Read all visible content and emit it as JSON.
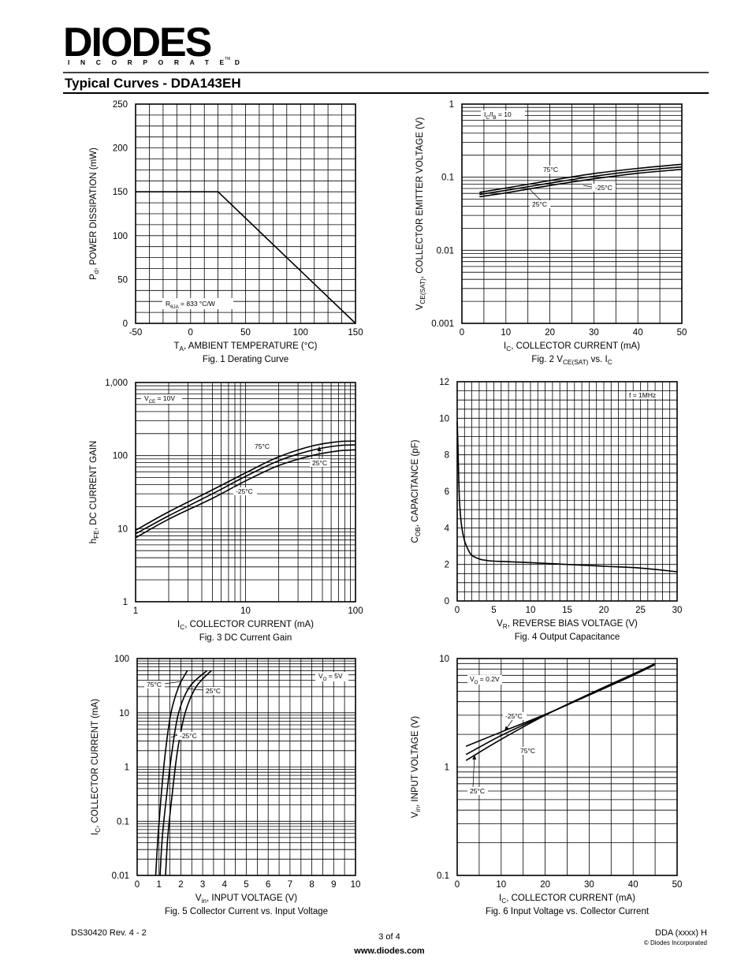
{
  "header": {
    "logo_text": "DIODES",
    "logo_subtext": "INCORPORATED",
    "logo_tm": "TM",
    "section_title": "Typical Curves - DDA143EH"
  },
  "footer": {
    "doc_number": "DS30420 Rev. 4 - 2",
    "page": "3 of 4",
    "website": "www.diodes.com",
    "part_code": "DDA (xxxx) H",
    "copyright": "© Diodes Incorporated"
  },
  "chart_data": [
    {
      "id": "fig1",
      "type": "line",
      "title": "Fig. 1  Derating Curve",
      "xlabel": {
        "main": "T",
        "sub": "A",
        "rest": ", AMBIENT TEMPERATURE (°C)"
      },
      "ylabel": {
        "main": "P",
        "sub": "d",
        "rest": ", POWER DISSIPATION (mW)"
      },
      "xscale": "linear",
      "yscale": "linear",
      "xlim": [
        -50,
        150
      ],
      "ylim": [
        0,
        250
      ],
      "xticks": [
        -50,
        0,
        50,
        100,
        150
      ],
      "xtick_labels": [
        "-50",
        "0",
        "50",
        "100",
        "150"
      ],
      "yticks": [
        0,
        50,
        100,
        150,
        200,
        250
      ],
      "ytick_labels": [
        "0",
        "50",
        "100",
        "150",
        "200",
        "250"
      ],
      "grid": true,
      "series": [
        {
          "name": "Pd",
          "x": [
            -50,
            25,
            150
          ],
          "y": [
            150,
            150,
            0
          ]
        }
      ],
      "annotations": [
        {
          "main": "R",
          "sub": "θJA",
          "rest": " = 833 °C/W"
        }
      ]
    },
    {
      "id": "fig2",
      "type": "line",
      "title": {
        "main": "Fig. 2  V",
        "sub": "CE(SAT)",
        "rest": " vs. I",
        "sub2": "C"
      },
      "xlabel": {
        "main": "I",
        "sub": "C",
        "rest": ", COLLECTOR CURRENT (mA)"
      },
      "ylabel": {
        "main": "V",
        "sub": "CE(SAT)",
        "rest": ", COLLECTOR EMITTER VOLTAGE (V)"
      },
      "xscale": "linear",
      "yscale": "log",
      "xlim": [
        0,
        50
      ],
      "ylim": [
        0.001,
        1
      ],
      "xticks": [
        0,
        10,
        20,
        30,
        40,
        50
      ],
      "xtick_labels": [
        "0",
        "10",
        "20",
        "30",
        "40",
        "50"
      ],
      "yticks": [
        0.001,
        0.01,
        0.1,
        1
      ],
      "ytick_labels": [
        "0.001",
        "0.01",
        "0.1",
        "1"
      ],
      "grid": true,
      "series": [
        {
          "name": "75°C",
          "x": [
            4,
            10,
            20,
            30,
            40,
            50
          ],
          "y": [
            0.062,
            0.071,
            0.09,
            0.112,
            0.132,
            0.15
          ]
        },
        {
          "name": "-25°C",
          "x": [
            4,
            10,
            20,
            30,
            40,
            50
          ],
          "y": [
            0.058,
            0.066,
            0.083,
            0.103,
            0.122,
            0.138
          ]
        },
        {
          "name": "25°C",
          "x": [
            4,
            10,
            20,
            30,
            40,
            50
          ],
          "y": [
            0.054,
            0.061,
            0.077,
            0.095,
            0.113,
            0.128
          ]
        }
      ],
      "annotations": [
        {
          "main": "I",
          "sub": "C",
          "rest": "/I",
          "sub2": "B",
          "rest2": " = 10"
        },
        {
          "main": "75°C"
        },
        {
          "main": "-25°C"
        },
        {
          "main": "25°C"
        }
      ]
    },
    {
      "id": "fig3",
      "type": "line",
      "title": "Fig. 3  DC Current Gain",
      "xlabel": {
        "main": "I",
        "sub": "C",
        "rest": ", COLLECTOR CURRENT (mA)"
      },
      "ylabel": {
        "main": "h",
        "sub": "FE",
        "rest": ", DC CURRENT GAIN"
      },
      "xscale": "log",
      "yscale": "log",
      "xlim": [
        1,
        100
      ],
      "ylim": [
        1,
        1000
      ],
      "xticks": [
        1,
        10,
        100
      ],
      "xtick_labels": [
        "1",
        "10",
        "100"
      ],
      "yticks": [
        1,
        10,
        100,
        1000
      ],
      "ytick_labels": [
        "1",
        "10",
        "100",
        "1,000"
      ],
      "grid": true,
      "series": [
        {
          "name": "75°C",
          "x": [
            1,
            2,
            5,
            10,
            20,
            40,
            70,
            100
          ],
          "y": [
            9.5,
            17,
            34,
            58,
            96,
            135,
            155,
            158
          ]
        },
        {
          "name": "25°C",
          "x": [
            1,
            2,
            5,
            10,
            20,
            40,
            70,
            100
          ],
          "y": [
            8.5,
            15,
            30,
            52,
            85,
            118,
            137,
            140
          ]
        },
        {
          "name": "-25°C",
          "x": [
            1,
            2,
            5,
            10,
            20,
            40,
            70,
            100
          ],
          "y": [
            7.5,
            13.5,
            26,
            45,
            73,
            100,
            116,
            120
          ]
        }
      ],
      "annotations": [
        {
          "main": "V",
          "sub": "CE",
          "rest": " = 10V"
        },
        {
          "main": "75°C"
        },
        {
          "main": "25°C"
        },
        {
          "main": "-25°C"
        }
      ]
    },
    {
      "id": "fig4",
      "type": "line",
      "title": "Fig. 4  Output Capacitance",
      "xlabel": {
        "main": "V",
        "sub": "R",
        "rest": ", REVERSE BIAS VOLTAGE (V)"
      },
      "ylabel": {
        "main": "C",
        "sub": "OB",
        "rest": ", CAPACITANCE (pF)"
      },
      "xscale": "linear",
      "yscale": "linear",
      "xlim": [
        0,
        30
      ],
      "ylim": [
        0,
        12
      ],
      "xticks": [
        0,
        5,
        10,
        15,
        20,
        25,
        30
      ],
      "xtick_labels": [
        "0",
        "5",
        "10",
        "15",
        "20",
        "25",
        "30"
      ],
      "yticks": [
        0,
        2,
        4,
        6,
        8,
        10,
        12
      ],
      "ytick_labels": [
        "0",
        "2",
        "4",
        "6",
        "8",
        "10",
        "12"
      ],
      "grid": true,
      "series": [
        {
          "name": "Cob",
          "x": [
            0,
            0.1,
            0.3,
            0.6,
            1,
            1.5,
            2,
            3,
            4,
            5,
            10,
            15,
            20,
            25,
            30
          ],
          "y": [
            9.8,
            8.6,
            5.6,
            4.1,
            3.3,
            2.8,
            2.5,
            2.3,
            2.22,
            2.18,
            2.1,
            2.0,
            1.9,
            1.8,
            1.6
          ]
        }
      ],
      "annotations": [
        {
          "main": "f = 1MHz"
        }
      ]
    },
    {
      "id": "fig5",
      "type": "line",
      "title": "Fig. 5  Collector Current vs. Input Voltage",
      "xlabel": {
        "main": "V",
        "sub": "in",
        "rest": ", INPUT VOLTAGE (V)"
      },
      "ylabel": {
        "main": "I",
        "sub": "C",
        "rest": ", COLLECTOR CURRENT (mA)"
      },
      "xscale": "linear",
      "yscale": "log",
      "xlim": [
        0,
        10
      ],
      "ylim": [
        0.01,
        100
      ],
      "xticks": [
        0,
        1,
        2,
        3,
        4,
        5,
        6,
        7,
        8,
        9,
        10
      ],
      "xtick_labels": [
        "0",
        "1",
        "2",
        "3",
        "4",
        "5",
        "6",
        "7",
        "8",
        "9",
        "10"
      ],
      "yticks": [
        0.01,
        0.1,
        1,
        10,
        100
      ],
      "ytick_labels": [
        "0.01",
        "0.1",
        "1",
        "10",
        "100"
      ],
      "grid": true,
      "series": [
        {
          "name": "75°C",
          "x": [
            0.85,
            0.95,
            1.1,
            1.3,
            1.55,
            1.9,
            2.3
          ],
          "y": [
            0.01,
            0.05,
            0.3,
            2,
            10,
            30,
            60
          ]
        },
        {
          "name": "25°C",
          "x": [
            1.05,
            1.15,
            1.35,
            1.6,
            1.9,
            2.4,
            3.2
          ],
          "y": [
            0.01,
            0.05,
            0.3,
            2,
            10,
            30,
            60
          ]
        },
        {
          "name": "-25°C",
          "x": [
            1.3,
            1.4,
            1.6,
            1.85,
            2.2,
            2.7,
            3.4
          ],
          "y": [
            0.01,
            0.05,
            0.3,
            2,
            10,
            30,
            60
          ]
        }
      ],
      "annotations": [
        {
          "main": "V",
          "sub": "O",
          "rest": " = 5V"
        },
        {
          "main": "75°C"
        },
        {
          "main": "25°C"
        },
        {
          "main": "-25°C"
        }
      ]
    },
    {
      "id": "fig6",
      "type": "line",
      "title": "Fig. 6  Input Voltage vs. Collector Current",
      "xlabel": {
        "main": "I",
        "sub": "C",
        "rest": ", COLLECTOR CURRENT (mA)"
      },
      "ylabel": {
        "main": "V",
        "sub": "in",
        "rest": ", INPUT VOLTAGE (V)"
      },
      "xscale": "linear",
      "yscale": "log",
      "xlim": [
        0,
        50
      ],
      "ylim": [
        0.1,
        10
      ],
      "xticks": [
        0,
        10,
        20,
        30,
        40,
        50
      ],
      "xtick_labels": [
        "0",
        "10",
        "20",
        "30",
        "40",
        "50"
      ],
      "yticks": [
        0.1,
        1,
        10
      ],
      "ytick_labels": [
        "0.1",
        "1",
        "10"
      ],
      "grid": true,
      "series": [
        {
          "name": "-25°C",
          "x": [
            2,
            10,
            20,
            30,
            40,
            45
          ],
          "y": [
            1.55,
            2.1,
            3.05,
            4.6,
            7.0,
            8.8
          ]
        },
        {
          "name": "75°C",
          "x": [
            2,
            10,
            20,
            30,
            40,
            45
          ],
          "y": [
            1.15,
            1.8,
            3.0,
            4.7,
            7.2,
            9.0
          ]
        },
        {
          "name": "25°C",
          "x": [
            2,
            10,
            20,
            30,
            40,
            45
          ],
          "y": [
            1.3,
            1.95,
            3.02,
            4.65,
            7.1,
            8.9
          ]
        }
      ],
      "annotations": [
        {
          "main": "V",
          "sub": "O",
          "rest": " = 0.2V"
        },
        {
          "main": "-25°C"
        },
        {
          "main": "75°C"
        },
        {
          "main": "25°C"
        }
      ]
    }
  ]
}
